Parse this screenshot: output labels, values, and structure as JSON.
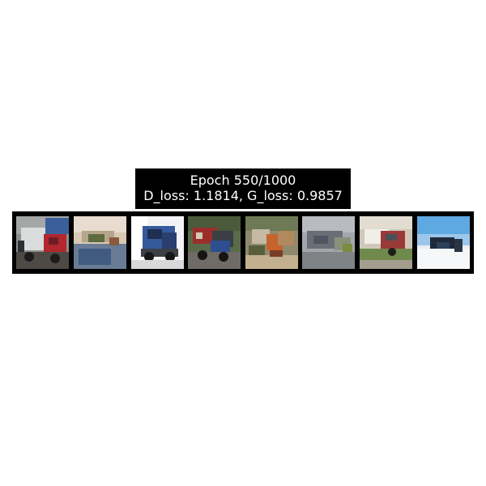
{
  "figure": {
    "title_line1": "Epoch 550/1000",
    "title_line2": "D_loss: 1.1814, G_loss: 0.9857"
  },
  "samples": [
    {
      "icon": "generated-sample-truck-red"
    },
    {
      "icon": "generated-sample-blurry-beige"
    },
    {
      "icon": "generated-sample-truck-blue"
    },
    {
      "icon": "generated-sample-truck-dark"
    },
    {
      "icon": "generated-sample-orange-scene"
    },
    {
      "icon": "generated-sample-grey-blur"
    },
    {
      "icon": "generated-sample-truck-green"
    },
    {
      "icon": "generated-sample-sky-blue"
    }
  ],
  "colors": {
    "background": "#ffffff",
    "title_background": "#000000",
    "title_text": "#ffffff",
    "strip_border": "#000000"
  }
}
